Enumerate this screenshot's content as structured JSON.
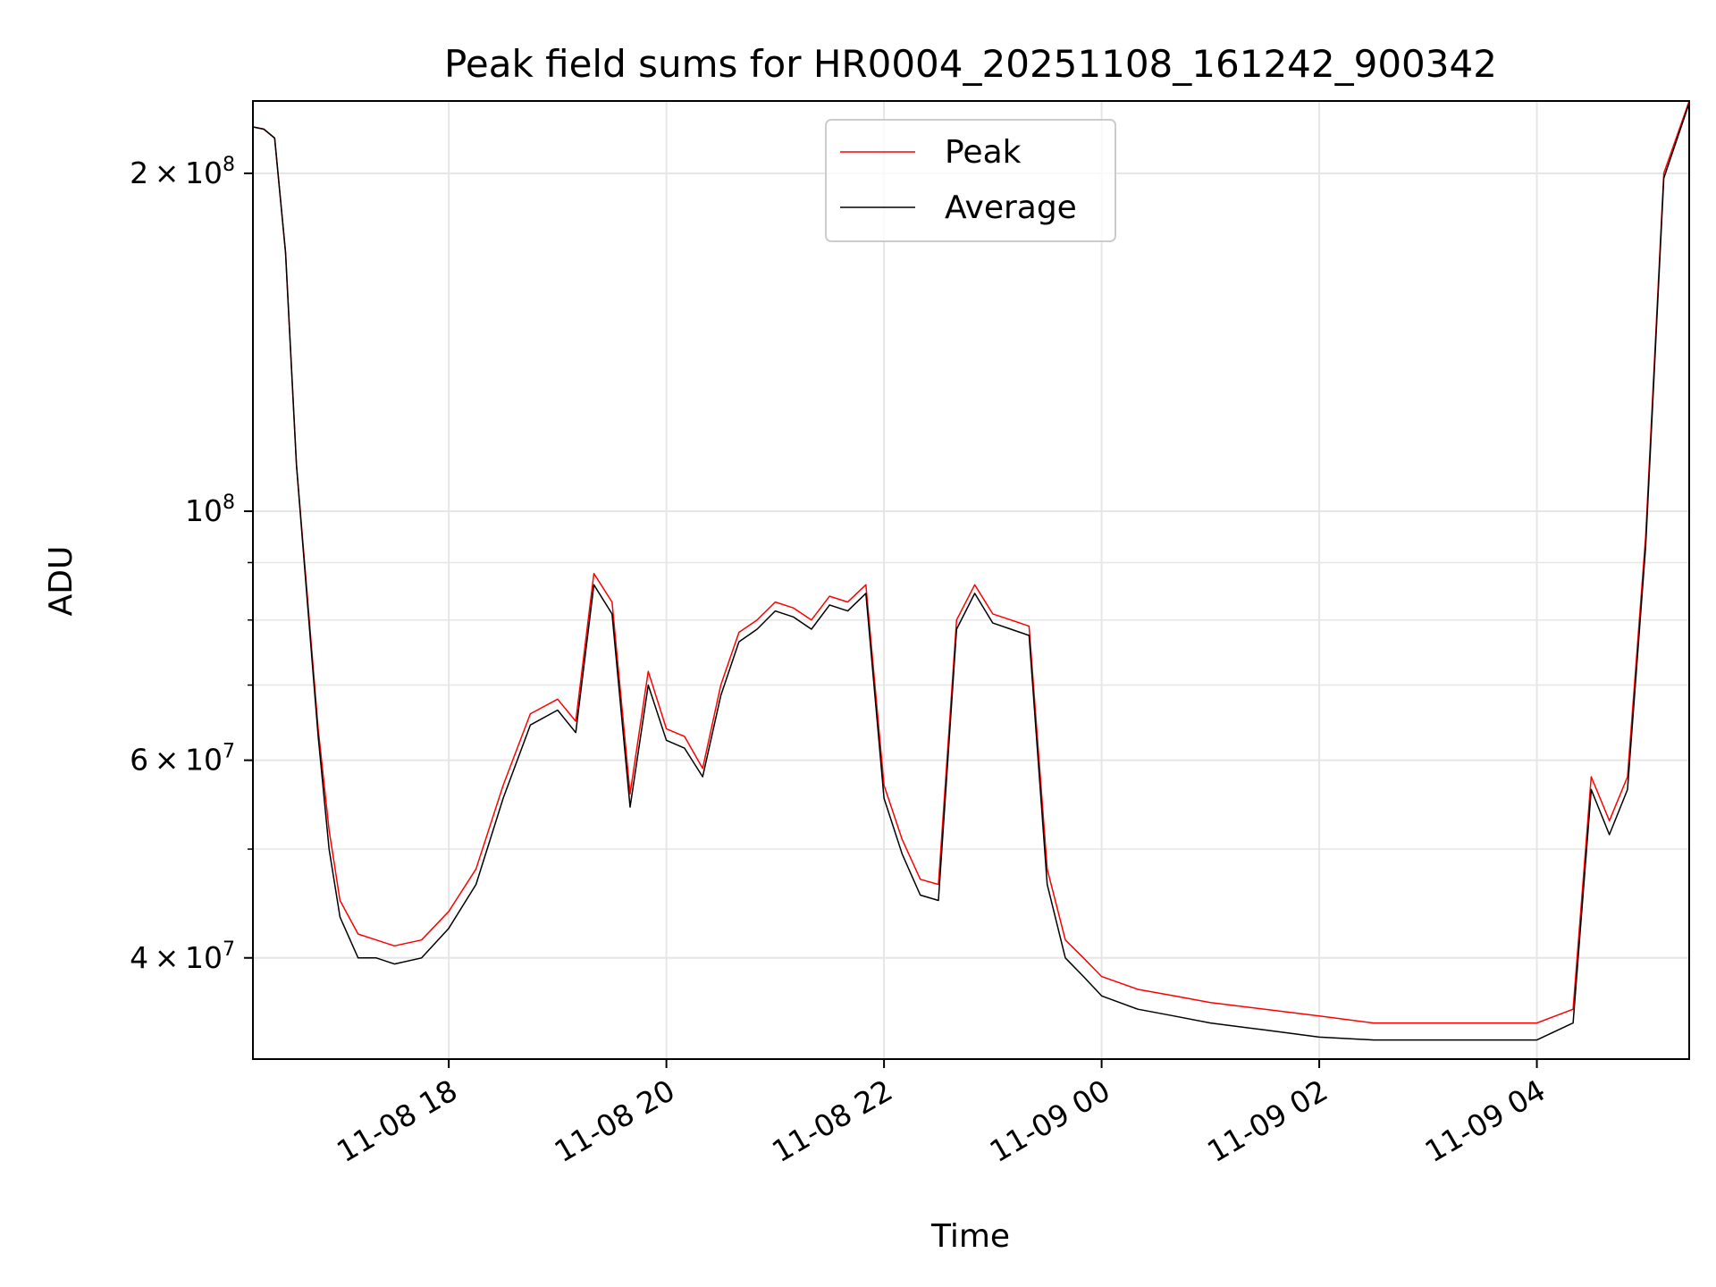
{
  "chart_data": {
    "type": "line",
    "title": "Peak field sums for HR0004_20251108_161242_900342",
    "xlabel": "Time",
    "ylabel": "ADU",
    "yscale": "log",
    "ylim": [
      32500000,
      232000000
    ],
    "xlim": [
      "2025-11-08 16:12",
      "2025-11-09 05:24"
    ],
    "grid": true,
    "legend_position": "top-center",
    "x_ticks": [
      {
        "t": "2025-11-08 18:00",
        "label": "11-08 18"
      },
      {
        "t": "2025-11-08 20:00",
        "label": "11-08 20"
      },
      {
        "t": "2025-11-08 22:00",
        "label": "11-08 22"
      },
      {
        "t": "2025-11-09 00:00",
        "label": "11-09 00"
      },
      {
        "t": "2025-11-09 02:00",
        "label": "11-09 02"
      },
      {
        "t": "2025-11-09 04:00",
        "label": "11-09 04"
      }
    ],
    "y_major_ticks": [
      {
        "v": 40000000,
        "mant": "4",
        "exp": "7"
      },
      {
        "v": 60000000,
        "mant": "6",
        "exp": "7"
      },
      {
        "v": 100000000,
        "mant": "",
        "exp": "8"
      },
      {
        "v": 200000000,
        "mant": "2",
        "exp": "8"
      }
    ],
    "y_minor_ticks": [
      50000000,
      70000000,
      80000000,
      90000000
    ],
    "x": [
      "2025-11-08 16:12",
      "2025-11-08 16:18",
      "2025-11-08 16:24",
      "2025-11-08 16:30",
      "2025-11-08 16:36",
      "2025-11-08 16:42",
      "2025-11-08 16:48",
      "2025-11-08 16:54",
      "2025-11-08 17:00",
      "2025-11-08 17:10",
      "2025-11-08 17:20",
      "2025-11-08 17:30",
      "2025-11-08 17:45",
      "2025-11-08 18:00",
      "2025-11-08 18:15",
      "2025-11-08 18:30",
      "2025-11-08 18:45",
      "2025-11-08 19:00",
      "2025-11-08 19:10",
      "2025-11-08 19:20",
      "2025-11-08 19:30",
      "2025-11-08 19:40",
      "2025-11-08 19:50",
      "2025-11-08 20:00",
      "2025-11-08 20:10",
      "2025-11-08 20:20",
      "2025-11-08 20:30",
      "2025-11-08 20:40",
      "2025-11-08 20:50",
      "2025-11-08 21:00",
      "2025-11-08 21:10",
      "2025-11-08 21:20",
      "2025-11-08 21:30",
      "2025-11-08 21:40",
      "2025-11-08 21:50",
      "2025-11-08 22:00",
      "2025-11-08 22:10",
      "2025-11-08 22:20",
      "2025-11-08 22:30",
      "2025-11-08 22:40",
      "2025-11-08 22:50",
      "2025-11-08 23:00",
      "2025-11-08 23:10",
      "2025-11-08 23:20",
      "2025-11-08 23:30",
      "2025-11-08 23:40",
      "2025-11-08 23:50",
      "2025-11-09 00:00",
      "2025-11-09 00:20",
      "2025-11-09 00:40",
      "2025-11-09 01:00",
      "2025-11-09 01:30",
      "2025-11-09 02:00",
      "2025-11-09 02:30",
      "2025-11-09 03:00",
      "2025-11-09 03:30",
      "2025-11-09 04:00",
      "2025-11-09 04:20",
      "2025-11-09 04:30",
      "2025-11-09 04:40",
      "2025-11-09 04:50",
      "2025-11-09 05:00",
      "2025-11-09 05:10",
      "2025-11-09 05:24"
    ],
    "series": [
      {
        "name": "Peak",
        "color": "#ff0000",
        "values": [
          220000000,
          219000000,
          215000000,
          170000000,
          110000000,
          84000000,
          64000000,
          52000000,
          45000000,
          42000000,
          41500000,
          41000000,
          41500000,
          44000000,
          48000000,
          57000000,
          66000000,
          68000000,
          65000000,
          88000000,
          83000000,
          56000000,
          72000000,
          64000000,
          63000000,
          59000000,
          70000000,
          78000000,
          80000000,
          83000000,
          82000000,
          80000000,
          84000000,
          83000000,
          86000000,
          57000000,
          51000000,
          47000000,
          46500000,
          80000000,
          86000000,
          81000000,
          80000000,
          79000000,
          48000000,
          41500000,
          40000000,
          38500000,
          37500000,
          37000000,
          36500000,
          36000000,
          35500000,
          35000000,
          35000000,
          35000000,
          35000000,
          36000000,
          58000000,
          53000000,
          58000000,
          95000000,
          200000000,
          232000000
        ]
      },
      {
        "name": "Average",
        "color": "#000000",
        "values": [
          220000000,
          219000000,
          215000000,
          170000000,
          110000000,
          83000000,
          63000000,
          50000000,
          43500000,
          40000000,
          40000000,
          39500000,
          40000000,
          42500000,
          46500000,
          55500000,
          64500000,
          66500000,
          63500000,
          86000000,
          81000000,
          54500000,
          70000000,
          62500000,
          61500000,
          58000000,
          68500000,
          76500000,
          78500000,
          81500000,
          80500000,
          78500000,
          82500000,
          81500000,
          84500000,
          55500000,
          49500000,
          45500000,
          45000000,
          78500000,
          84500000,
          79500000,
          78500000,
          77500000,
          46500000,
          40000000,
          38500000,
          37000000,
          36000000,
          35500000,
          35000000,
          34500000,
          34000000,
          33800000,
          33800000,
          33800000,
          33800000,
          35000000,
          56500000,
          51500000,
          56500000,
          93000000,
          198000000,
          231000000
        ]
      }
    ]
  }
}
